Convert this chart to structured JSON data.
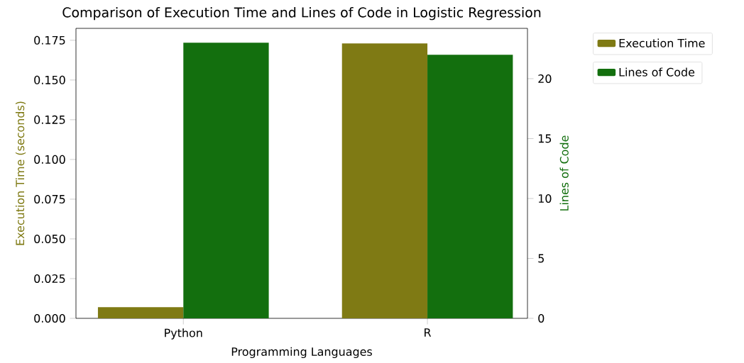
{
  "chart_data": {
    "type": "bar",
    "title": "Comparison of Execution Time and Lines of Code in Logistic Regression",
    "xlabel": "Programming Languages",
    "ylabel": "Execution Time (seconds)",
    "y2label": "Lines of Code",
    "categories": [
      "Python",
      "R"
    ],
    "series": [
      {
        "name": "Execution Time",
        "color": "#7f7a14",
        "values": [
          0.007,
          0.173
        ]
      },
      {
        "name": "Lines of Code",
        "color": "#136f0e",
        "values": [
          23,
          22
        ],
        "axis": "y2"
      }
    ],
    "ylim": [
      0,
      0.1825
    ],
    "yticks": [
      {
        "value": 0,
        "label": "0.000"
      },
      {
        "value": 0.025,
        "label": "0.025"
      },
      {
        "value": 0.05,
        "label": "0.050"
      },
      {
        "value": 0.075,
        "label": "0.075"
      },
      {
        "value": 0.1,
        "label": "0.100"
      },
      {
        "value": 0.125,
        "label": "0.125"
      },
      {
        "value": 0.15,
        "label": "0.150"
      },
      {
        "value": 0.175,
        "label": "0.175"
      }
    ],
    "y2lim": [
      0,
      24.2
    ],
    "y2ticks": [
      0,
      5,
      10,
      15,
      20
    ],
    "legend": "top right"
  }
}
